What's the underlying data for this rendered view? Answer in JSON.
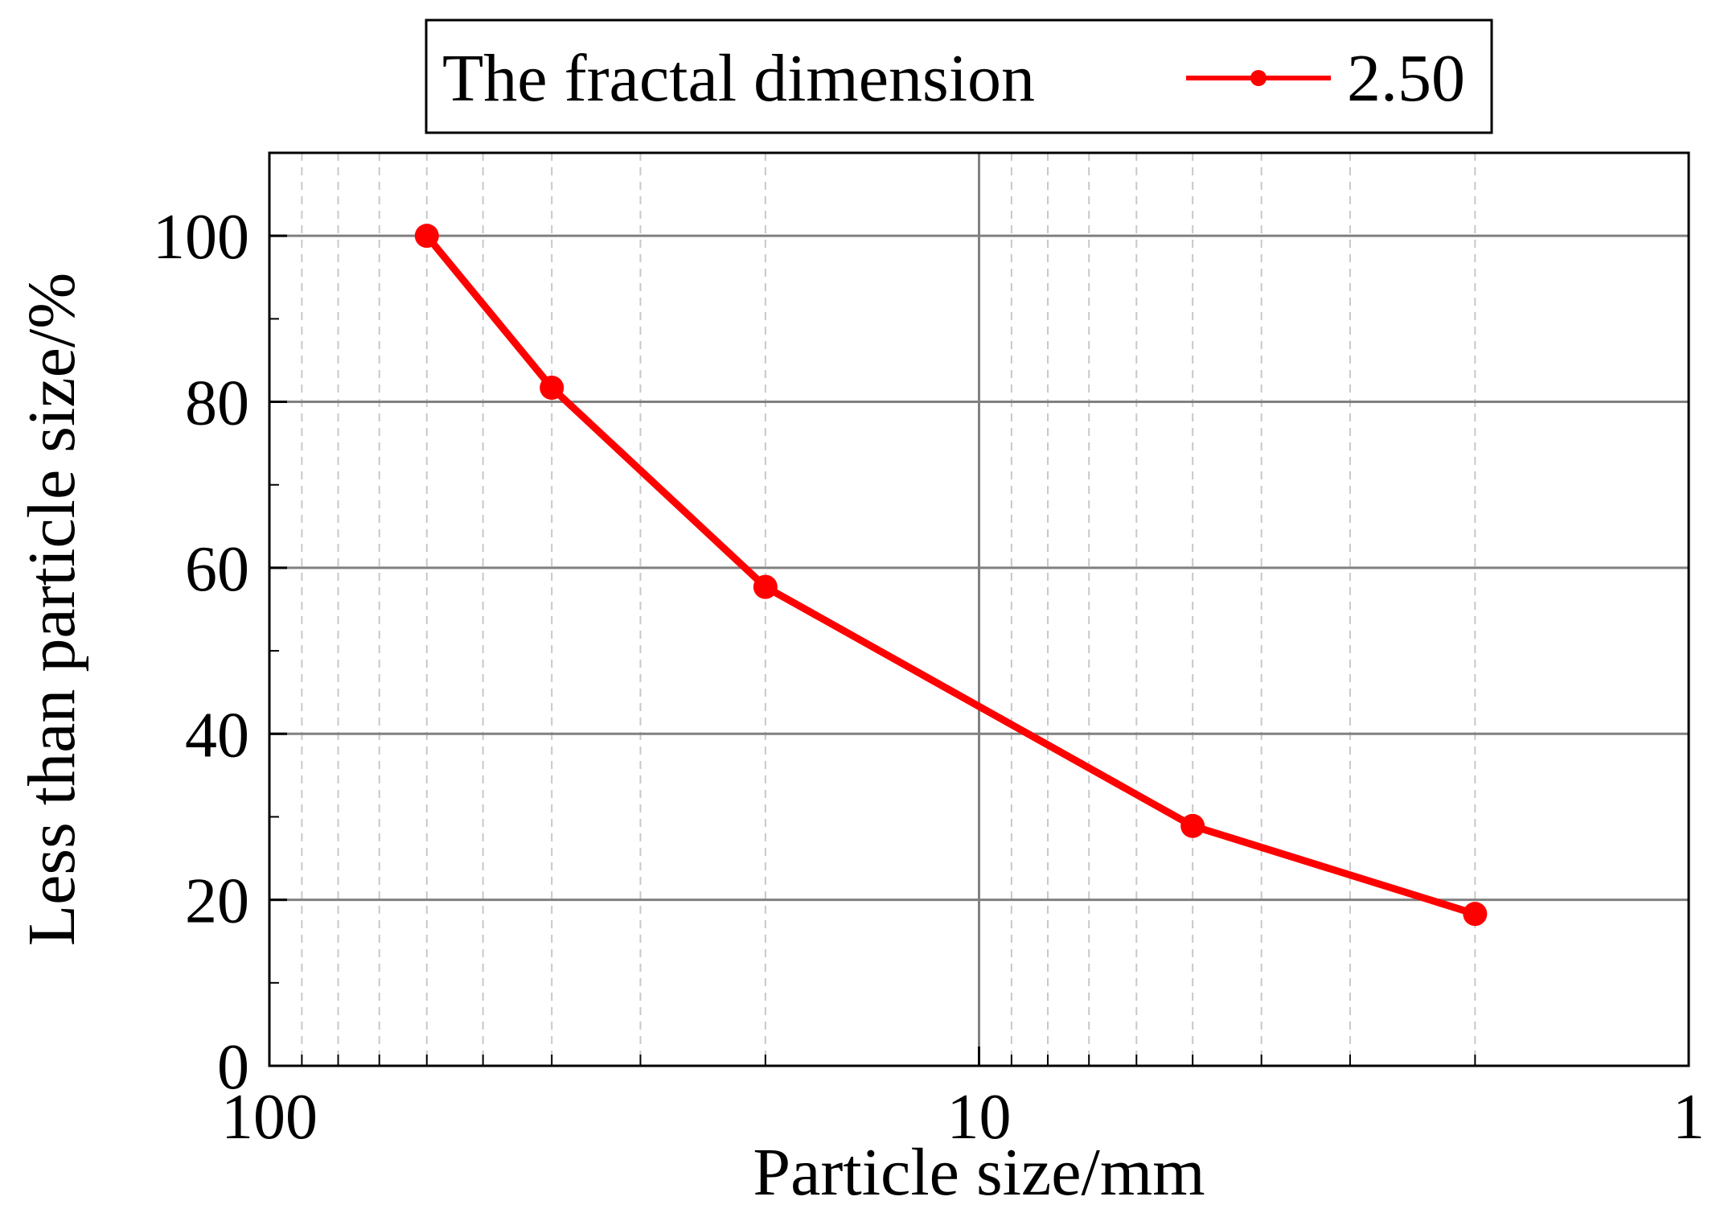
{
  "chart_data": {
    "type": "line",
    "x_scale": "log",
    "x_reversed": true,
    "xlim": [
      100,
      1
    ],
    "ylim": [
      0,
      110
    ],
    "xlabel": "Particle size/mm",
    "ylabel": "Less than particle size/%",
    "x_ticks": [
      {
        "value": 100,
        "label": "100"
      },
      {
        "value": 10,
        "label": "10"
      },
      {
        "value": 1,
        "label": "1"
      }
    ],
    "y_ticks": [
      {
        "value": 0,
        "label": "0"
      },
      {
        "value": 20,
        "label": "20"
      },
      {
        "value": 40,
        "label": "40"
      },
      {
        "value": 60,
        "label": "60"
      },
      {
        "value": 80,
        "label": "80"
      },
      {
        "value": 100,
        "label": "100"
      }
    ],
    "grid": true,
    "legend": {
      "position": "top-center",
      "title": "The fractal dimension"
    },
    "series": [
      {
        "name": "2.50",
        "color": "#ff0000",
        "points": [
          {
            "x": 60,
            "y": 100.0
          },
          {
            "x": 40,
            "y": 81.7
          },
          {
            "x": 20,
            "y": 57.7
          },
          {
            "x": 5,
            "y": 28.9
          },
          {
            "x": 2,
            "y": 18.3
          }
        ]
      }
    ]
  }
}
